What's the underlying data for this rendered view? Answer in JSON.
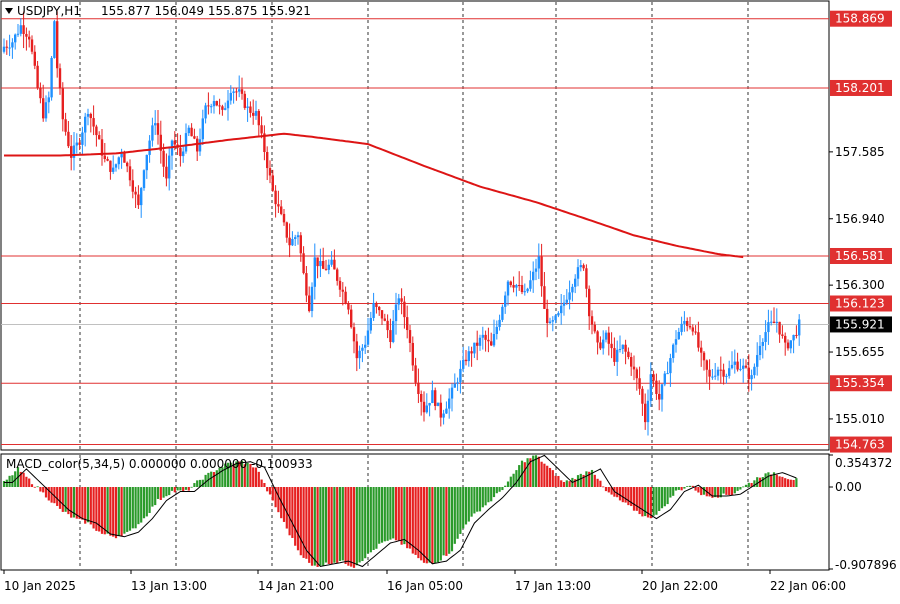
{
  "header": {
    "symbol": "USDJPY,H1",
    "ohlc": "155.877 156.049 155.875 155.921"
  },
  "colors": {
    "bull": "#1e90ff",
    "bear": "#e62020",
    "ma": "#dd1515",
    "level": "#e03030",
    "macd_pos": "#2a9a2a",
    "macd_neg": "#e62020",
    "signal": "#000000",
    "grid": "#000000",
    "current_bg": "#000000"
  },
  "chart_data": [
    {
      "type": "candlestick",
      "title": "USDJPY,H1",
      "ylim": [
        154.72,
        159.03
      ],
      "y_ticks": [
        "158.869",
        "158.201",
        "157.585",
        "156.940",
        "156.581",
        "156.300",
        "156.123",
        "155.921",
        "155.655",
        "155.354",
        "155.010",
        "154.763"
      ],
      "levels": [
        {
          "label": "158.869",
          "value": 158.869
        },
        {
          "label": "158.201",
          "value": 158.201
        },
        {
          "label": "156.581",
          "value": 156.581
        },
        {
          "label": "156.123",
          "value": 156.123
        },
        {
          "label": "155.354",
          "value": 155.354
        },
        {
          "label": "154.763",
          "value": 154.763
        }
      ],
      "current_price": {
        "label": "155.921",
        "value": 155.921
      },
      "x_labels": [
        "10 Jan 2025",
        "13 Jan 13:00",
        "14 Jan 21:00",
        "16 Jan 05:00",
        "17 Jan 13:00",
        "20 Jan 22:00",
        "22 Jan 06:00"
      ],
      "close_path": [
        [
          0,
          158.6
        ],
        [
          3,
          158.65
        ],
        [
          6,
          158.8
        ],
        [
          9,
          158.7
        ],
        [
          12,
          158.2
        ],
        [
          14,
          157.95
        ],
        [
          16,
          158.1
        ],
        [
          18,
          158.85
        ],
        [
          19,
          158.4
        ],
        [
          21,
          157.9
        ],
        [
          24,
          157.55
        ],
        [
          27,
          157.7
        ],
        [
          30,
          158.0
        ],
        [
          33,
          157.75
        ],
        [
          36,
          157.5
        ],
        [
          39,
          157.4
        ],
        [
          42,
          157.6
        ],
        [
          45,
          157.35
        ],
        [
          48,
          157.05
        ],
        [
          50,
          157.45
        ],
        [
          52,
          157.7
        ],
        [
          54,
          157.9
        ],
        [
          56,
          157.6
        ],
        [
          58,
          157.3
        ],
        [
          60,
          157.7
        ],
        [
          63,
          157.55
        ],
        [
          66,
          157.8
        ],
        [
          69,
          157.6
        ],
        [
          72,
          158.0
        ],
        [
          75,
          158.1
        ],
        [
          78,
          157.95
        ],
        [
          81,
          158.2
        ],
        [
          84,
          158.15
        ],
        [
          87,
          158.0
        ],
        [
          90,
          157.95
        ],
        [
          93,
          157.6
        ],
        [
          96,
          157.2
        ],
        [
          99,
          156.95
        ],
        [
          102,
          156.7
        ],
        [
          105,
          156.8
        ],
        [
          107,
          156.4
        ],
        [
          109,
          156.1
        ],
        [
          111,
          156.55
        ],
        [
          114,
          156.45
        ],
        [
          117,
          156.5
        ],
        [
          120,
          156.3
        ],
        [
          123,
          156.1
        ],
        [
          126,
          155.6
        ],
        [
          129,
          155.75
        ],
        [
          132,
          156.1
        ],
        [
          135,
          156.0
        ],
        [
          138,
          155.8
        ],
        [
          141,
          156.2
        ],
        [
          144,
          155.9
        ],
        [
          147,
          155.4
        ],
        [
          150,
          155.1
        ],
        [
          153,
          155.25
        ],
        [
          156,
          155.05
        ],
        [
          159,
          155.2
        ],
        [
          162,
          155.4
        ],
        [
          165,
          155.6
        ],
        [
          168,
          155.7
        ],
        [
          171,
          155.8
        ],
        [
          174,
          155.7
        ],
        [
          177,
          156.0
        ],
        [
          180,
          156.35
        ],
        [
          183,
          156.3
        ],
        [
          186,
          156.2
        ],
        [
          189,
          156.4
        ],
        [
          191,
          156.55
        ],
        [
          193,
          156.05
        ],
        [
          195,
          155.9
        ],
        [
          198,
          156.0
        ],
        [
          201,
          156.2
        ],
        [
          204,
          156.4
        ],
        [
          207,
          156.5
        ],
        [
          209,
          156.05
        ],
        [
          212,
          155.7
        ],
        [
          215,
          155.8
        ],
        [
          218,
          155.6
        ],
        [
          221,
          155.7
        ],
        [
          224,
          155.55
        ],
        [
          227,
          155.3
        ],
        [
          229,
          155.0
        ],
        [
          231,
          155.45
        ],
        [
          234,
          155.2
        ],
        [
          237,
          155.5
        ],
        [
          240,
          155.8
        ],
        [
          243,
          155.95
        ],
        [
          246,
          155.9
        ],
        [
          249,
          155.6
        ],
        [
          252,
          155.4
        ],
        [
          255,
          155.5
        ],
        [
          258,
          155.45
        ],
        [
          261,
          155.55
        ],
        [
          264,
          155.5
        ],
        [
          267,
          155.4
        ],
        [
          270,
          155.75
        ],
        [
          273,
          155.9
        ],
        [
          276,
          155.95
        ],
        [
          279,
          155.7
        ],
        [
          282,
          155.8
        ],
        [
          284,
          155.921
        ]
      ],
      "ma_path": [
        [
          0,
          157.55
        ],
        [
          20,
          157.55
        ],
        [
          40,
          157.57
        ],
        [
          60,
          157.63
        ],
        [
          80,
          157.7
        ],
        [
          100,
          157.76
        ],
        [
          110,
          157.73
        ],
        [
          130,
          157.66
        ],
        [
          150,
          157.45
        ],
        [
          170,
          157.25
        ],
        [
          190,
          157.1
        ],
        [
          210,
          156.92
        ],
        [
          225,
          156.78
        ],
        [
          240,
          156.68
        ],
        [
          255,
          156.6
        ],
        [
          264,
          156.57
        ]
      ]
    },
    {
      "type": "bar",
      "title": "MACD_color(5,34,5) 0.000000 0.000000 -0.100933",
      "ylim": [
        -0.907896,
        0.354372
      ],
      "y_ticks": [
        "0.354372",
        "0.00",
        "-0.907896"
      ],
      "histogram_path": [
        [
          0,
          0.05
        ],
        [
          5,
          0.2
        ],
        [
          10,
          0.05
        ],
        [
          15,
          -0.1
        ],
        [
          20,
          -0.25
        ],
        [
          25,
          -0.35
        ],
        [
          30,
          -0.4
        ],
        [
          35,
          -0.52
        ],
        [
          40,
          -0.55
        ],
        [
          45,
          -0.5
        ],
        [
          50,
          -0.35
        ],
        [
          55,
          -0.15
        ],
        [
          60,
          -0.05
        ],
        [
          65,
          -0.05
        ],
        [
          70,
          0.08
        ],
        [
          75,
          0.18
        ],
        [
          80,
          0.26
        ],
        [
          85,
          0.28
        ],
        [
          90,
          0.22
        ],
        [
          95,
          -0.1
        ],
        [
          100,
          -0.4
        ],
        [
          105,
          -0.7
        ],
        [
          110,
          -0.88
        ],
        [
          115,
          -0.85
        ],
        [
          120,
          -0.82
        ],
        [
          125,
          -0.88
        ],
        [
          130,
          -0.75
        ],
        [
          135,
          -0.62
        ],
        [
          140,
          -0.58
        ],
        [
          145,
          -0.7
        ],
        [
          150,
          -0.85
        ],
        [
          155,
          -0.82
        ],
        [
          160,
          -0.7
        ],
        [
          165,
          -0.4
        ],
        [
          170,
          -0.25
        ],
        [
          175,
          -0.12
        ],
        [
          180,
          0.05
        ],
        [
          185,
          0.28
        ],
        [
          190,
          0.35
        ],
        [
          195,
          0.2
        ],
        [
          200,
          0.05
        ],
        [
          205,
          0.12
        ],
        [
          210,
          0.2
        ],
        [
          215,
          -0.05
        ],
        [
          220,
          -0.15
        ],
        [
          225,
          -0.25
        ],
        [
          230,
          -0.35
        ],
        [
          235,
          -0.25
        ],
        [
          240,
          -0.05
        ],
        [
          245,
          0.02
        ],
        [
          250,
          -0.1
        ],
        [
          255,
          -0.1
        ],
        [
          260,
          -0.08
        ],
        [
          265,
          0.02
        ],
        [
          270,
          0.12
        ],
        [
          275,
          0.16
        ],
        [
          280,
          0.1
        ],
        [
          283,
          0.08
        ]
      ],
      "signal_lag": 3
    }
  ]
}
